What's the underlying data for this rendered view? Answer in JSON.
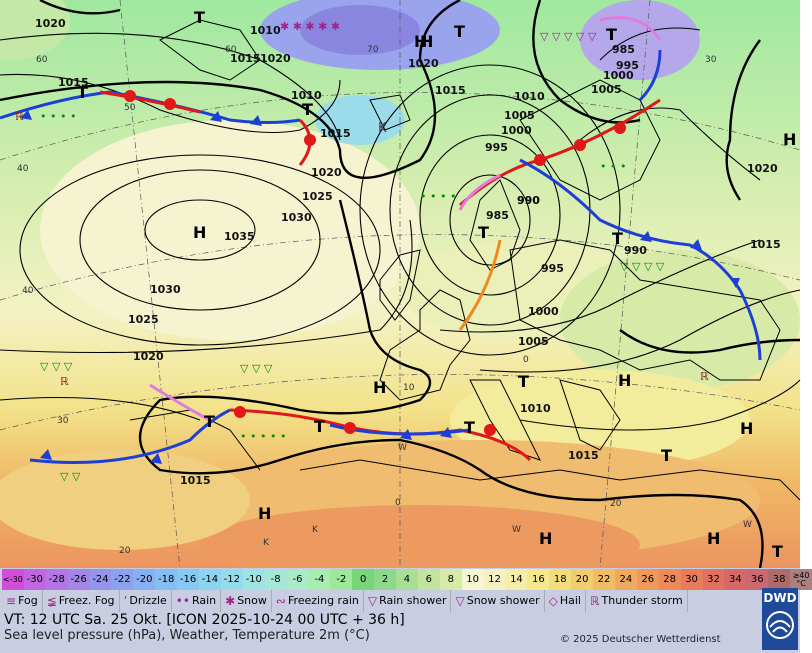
{
  "map": {
    "isobar_labels": [
      {
        "text": "1020"
      },
      {
        "text": "1015"
      },
      {
        "text": "1010"
      },
      {
        "text": "1015"
      },
      {
        "text": "1010"
      },
      {
        "text": "1015"
      },
      {
        "text": "1020"
      },
      {
        "text": "1025"
      },
      {
        "text": "1030"
      },
      {
        "text": "1035"
      },
      {
        "text": "1030"
      },
      {
        "text": "1025"
      },
      {
        "text": "1020"
      },
      {
        "text": "1020"
      },
      {
        "text": "1015"
      },
      {
        "text": "1010"
      },
      {
        "text": "1005"
      },
      {
        "text": "1000"
      },
      {
        "text": "995"
      },
      {
        "text": "990"
      },
      {
        "text": "985"
      },
      {
        "text": "995"
      },
      {
        "text": "1000"
      },
      {
        "text": "1005"
      },
      {
        "text": "990"
      },
      {
        "text": "985"
      },
      {
        "text": "995"
      },
      {
        "text": "1000"
      },
      {
        "text": "1005"
      },
      {
        "text": "1010"
      },
      {
        "text": "1015"
      },
      {
        "text": "1020"
      },
      {
        "text": "1015"
      },
      {
        "text": "1015"
      },
      {
        "text": "1020"
      },
      {
        "text": "990"
      }
    ],
    "pressure_centers": [
      {
        "text": "T"
      },
      {
        "text": "T"
      },
      {
        "text": "T"
      },
      {
        "text": "H"
      },
      {
        "text": "T"
      },
      {
        "text": "T"
      },
      {
        "text": "H"
      },
      {
        "text": "T"
      },
      {
        "text": "T"
      },
      {
        "text": "H"
      },
      {
        "text": "H"
      },
      {
        "text": "T"
      },
      {
        "text": "H"
      },
      {
        "text": "T"
      },
      {
        "text": "T"
      },
      {
        "text": "H"
      },
      {
        "text": "H"
      },
      {
        "text": "H"
      },
      {
        "text": "H"
      },
      {
        "text": "T"
      },
      {
        "text": "T"
      },
      {
        "text": "T"
      },
      {
        "text": "H"
      }
    ],
    "temp_labels": [
      {
        "text": "60"
      },
      {
        "text": "60"
      },
      {
        "text": "70"
      },
      {
        "text": "50"
      },
      {
        "text": "40"
      },
      {
        "text": "40"
      },
      {
        "text": "30"
      },
      {
        "text": "20"
      },
      {
        "text": "20"
      },
      {
        "text": "30"
      },
      {
        "text": "0"
      },
      {
        "text": "0"
      },
      {
        "text": "10"
      },
      {
        "text": "W"
      },
      {
        "text": "K"
      },
      {
        "text": "K"
      },
      {
        "text": "W"
      },
      {
        "text": "W"
      },
      {
        "text": "K"
      }
    ]
  },
  "legend": {
    "scale": [
      {
        "label": "<-30",
        "color": "#d04fd8"
      },
      {
        "label": "-30",
        "color": "#c266e0"
      },
      {
        "label": "-28",
        "color": "#b376e4"
      },
      {
        "label": "-26",
        "color": "#a386e8"
      },
      {
        "label": "-24",
        "color": "#9494ea"
      },
      {
        "label": "-22",
        "color": "#8ca2ee"
      },
      {
        "label": "-20",
        "color": "#86b0f0"
      },
      {
        "label": "-18",
        "color": "#84bef2"
      },
      {
        "label": "-16",
        "color": "#86caf2"
      },
      {
        "label": "-14",
        "color": "#8cd4f0"
      },
      {
        "label": "-12",
        "color": "#94dcec"
      },
      {
        "label": "-10",
        "color": "#9ee2e4"
      },
      {
        "label": "-8",
        "color": "#a6e6d6"
      },
      {
        "label": "-6",
        "color": "#aaeac6"
      },
      {
        "label": "-4",
        "color": "#a8ecb2"
      },
      {
        "label": "-2",
        "color": "#9ee89c"
      },
      {
        "label": "0",
        "color": "#78d67a"
      },
      {
        "label": "2",
        "color": "#8ed88a"
      },
      {
        "label": "4",
        "color": "#a8de96"
      },
      {
        "label": "6",
        "color": "#c2e4a0"
      },
      {
        "label": "8",
        "color": "#d8eaa8"
      },
      {
        "label": "10",
        "color": "#f4f6d4"
      },
      {
        "label": "12",
        "color": "#f4f2c2"
      },
      {
        "label": "14",
        "color": "#f4eeaa"
      },
      {
        "label": "16",
        "color": "#f4e890"
      },
      {
        "label": "18",
        "color": "#f2dc7c"
      },
      {
        "label": "20",
        "color": "#f2cc70"
      },
      {
        "label": "22",
        "color": "#f0bc66"
      },
      {
        "label": "24",
        "color": "#f0aa60"
      },
      {
        "label": "26",
        "color": "#ee985c"
      },
      {
        "label": "28",
        "color": "#ec8a5a"
      },
      {
        "label": "30",
        "color": "#e87c5a"
      },
      {
        "label": "32",
        "color": "#e07060"
      },
      {
        "label": "34",
        "color": "#d66868"
      },
      {
        "label": "36",
        "color": "#cc6870"
      },
      {
        "label": "38",
        "color": "#b06a6a"
      },
      {
        "label": "≥40 °C",
        "color": "#aa8080"
      }
    ],
    "weather": [
      {
        "label": "Fog",
        "icon": "fog-icon",
        "glyph": "≡"
      },
      {
        "label": "Freez. Fog",
        "icon": "freezing-fog-icon",
        "glyph": "≨"
      },
      {
        "label": "Drizzle",
        "icon": "drizzle-icon",
        "glyph": "ʼ"
      },
      {
        "label": "Rain",
        "icon": "rain-icon",
        "glyph": "••"
      },
      {
        "label": "Snow",
        "icon": "snow-icon",
        "glyph": "✱"
      },
      {
        "label": "Freezing rain",
        "icon": "freezing-rain-icon",
        "glyph": "∾"
      },
      {
        "label": "Rain shower",
        "icon": "rain-shower-icon",
        "glyph": "▽"
      },
      {
        "label": "Snow shower",
        "icon": "snow-shower-icon",
        "glyph": "▽"
      },
      {
        "label": "Hail",
        "icon": "hail-icon",
        "glyph": "◇"
      },
      {
        "label": "Thunder storm",
        "icon": "thunderstorm-icon",
        "glyph": "ℝ"
      }
    ],
    "valid_time": "VT: 12 UTC Sa.  25 Okt. [ICON 2025-10-24  00 UTC + 36 h]",
    "subtitle": "Sea level pressure (hPa), Weather, Temperature 2m (°C)",
    "copyright": "© 2025 Deutscher Wetterdienst",
    "logo_text": "DWD"
  }
}
